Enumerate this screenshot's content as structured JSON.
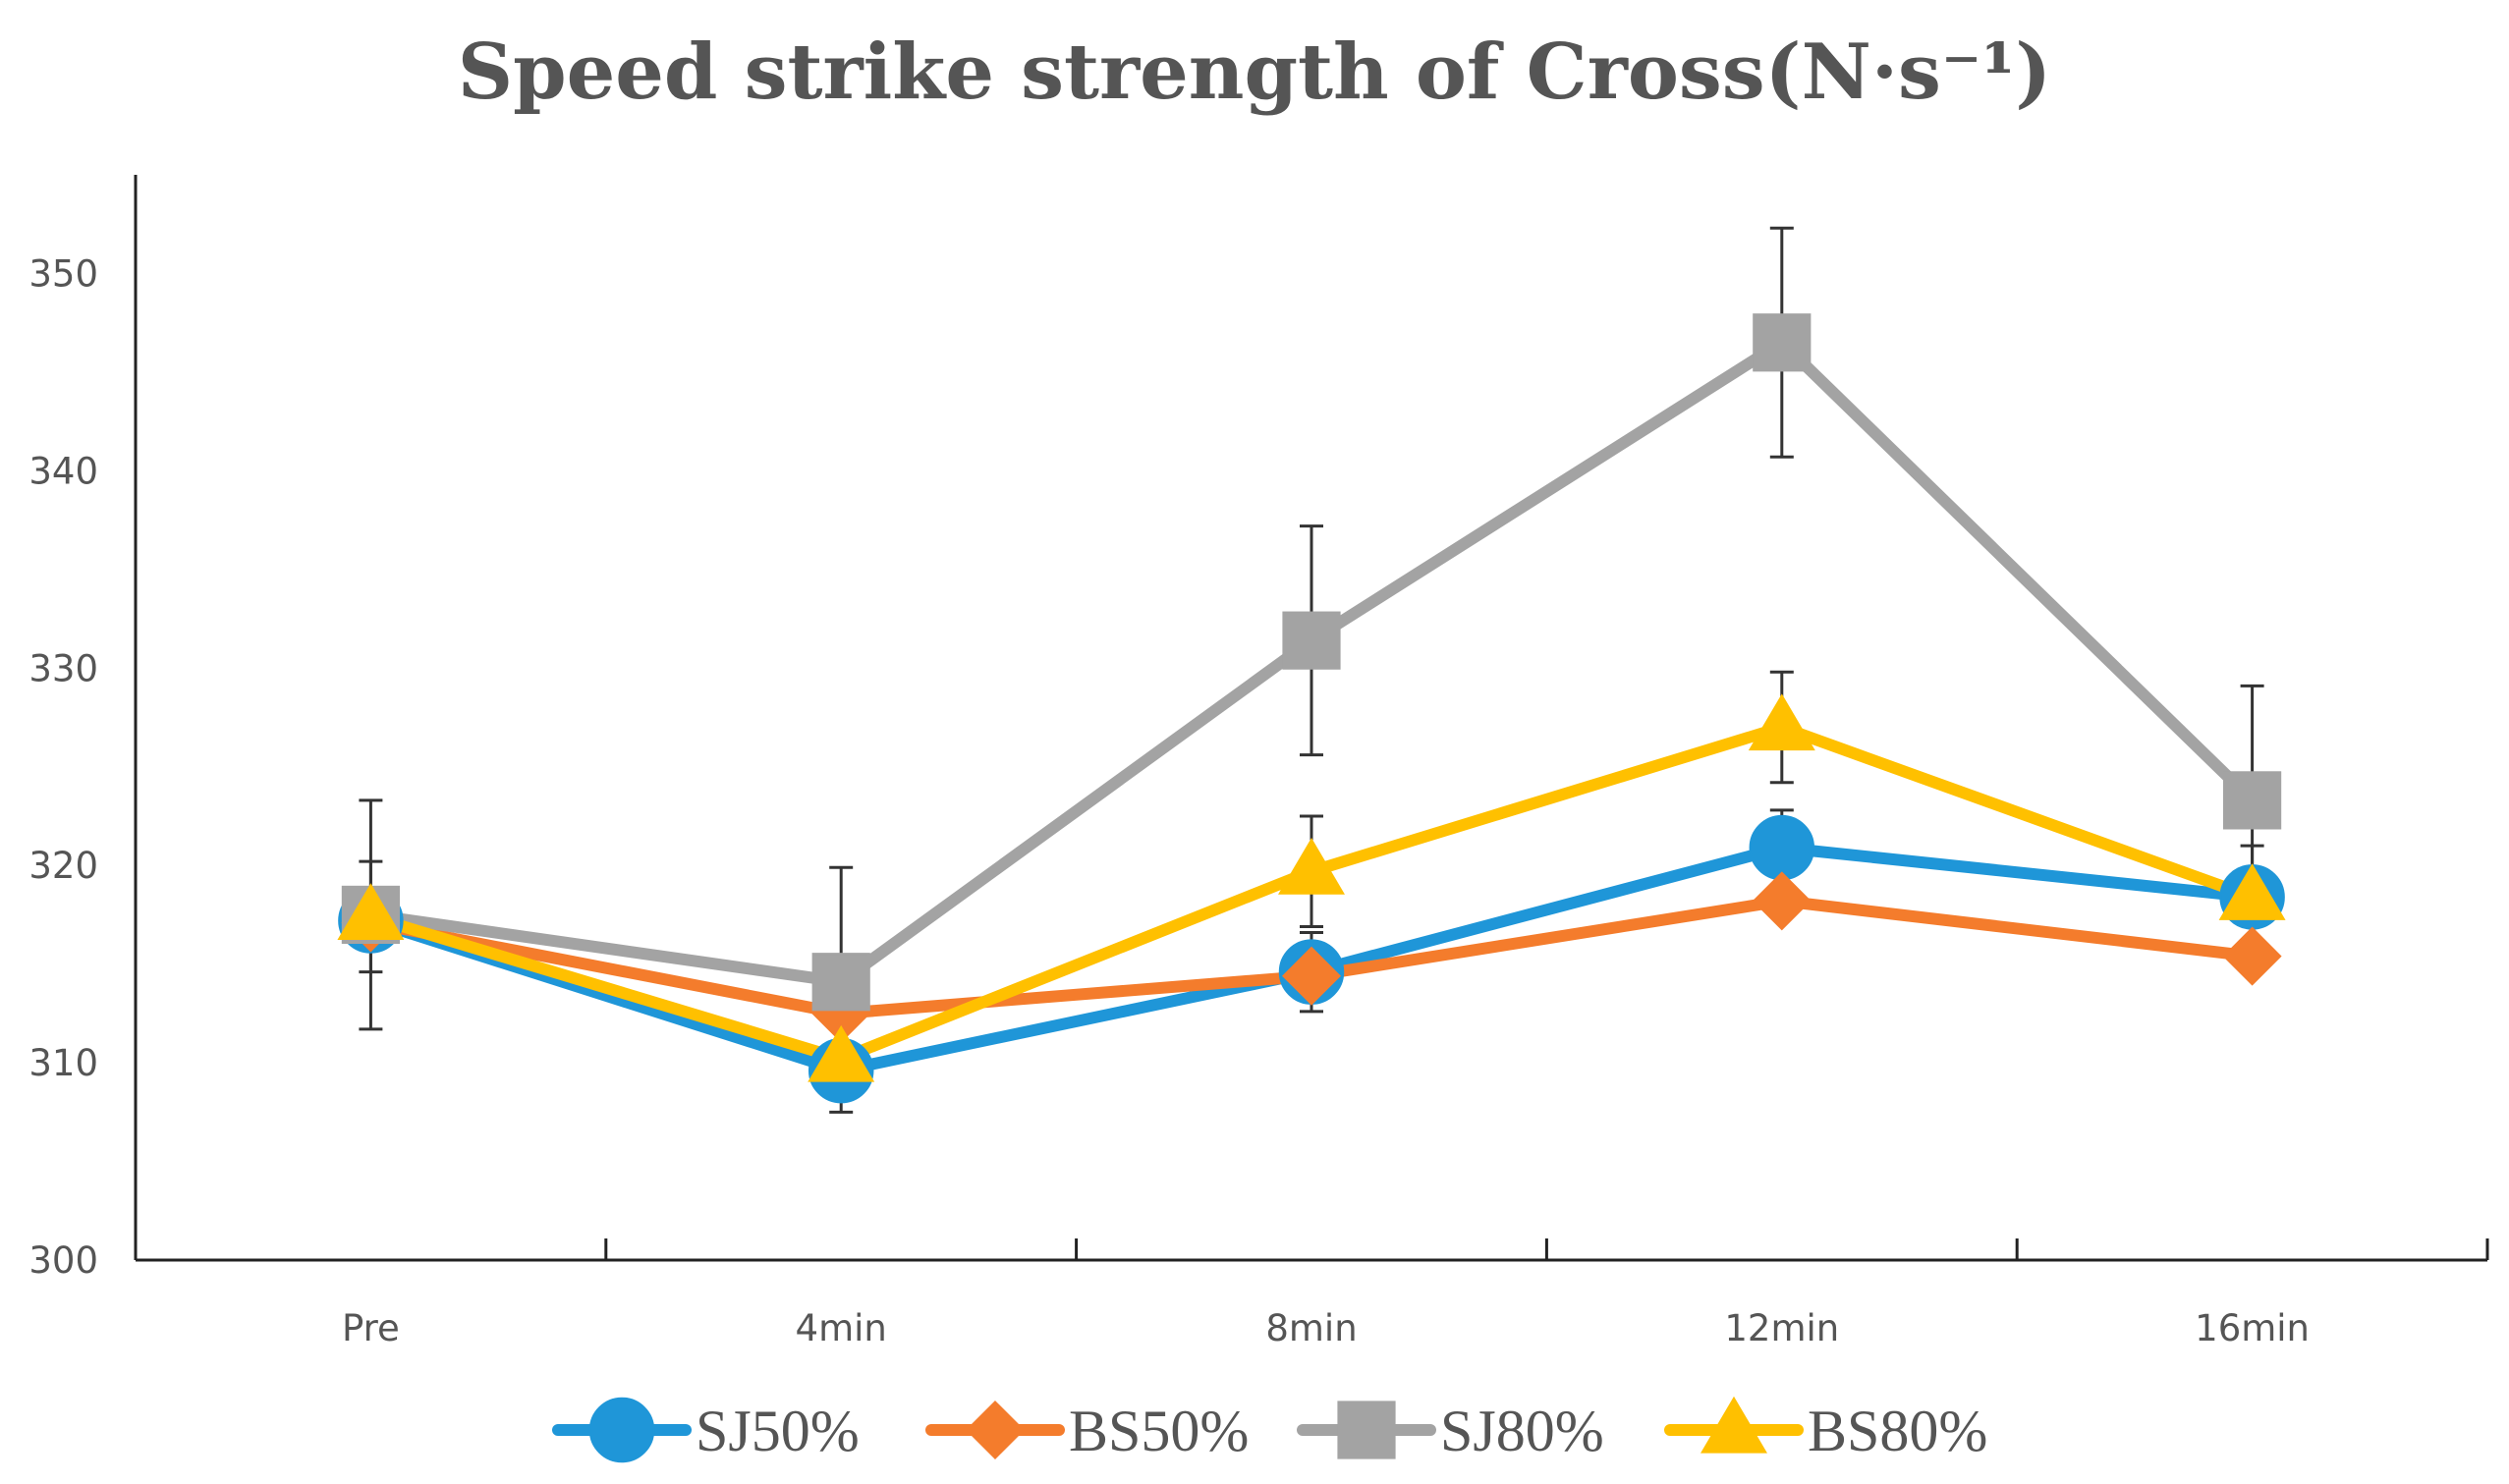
{
  "chart_data": {
    "type": "line",
    "title": "Speed strike strength of Cross(N·s⁻¹)",
    "xlabel": "",
    "ylabel": "",
    "categories": [
      "Pre",
      "4min",
      "8min",
      "12min",
      "16min"
    ],
    "ylim": [
      300,
      355
    ],
    "yticks": [
      300,
      310,
      320,
      330,
      340,
      350
    ],
    "grid": false,
    "legend_position": "bottom",
    "series": [
      {
        "name": "SJ50%",
        "color": "#1f96d8",
        "marker": "circle",
        "values": [
          317.2,
          309.6,
          314.6,
          320.9,
          318.4
        ],
        "errors": [
          null,
          2.1,
          2.0,
          1.9,
          2.6
        ]
      },
      {
        "name": "BS50%",
        "color": "#f47c2c",
        "marker": "diamond",
        "values": [
          317.1,
          312.5,
          314.4,
          318.2,
          315.4
        ],
        "errors": [
          null,
          null,
          null,
          null,
          null
        ]
      },
      {
        "name": "SJ80%",
        "color": "#a3a3a3",
        "marker": "square",
        "values": [
          317.5,
          314.1,
          331.4,
          346.5,
          323.3
        ],
        "errors": [
          5.8,
          5.8,
          5.8,
          5.8,
          5.8
        ]
      },
      {
        "name": "BS80%",
        "color": "#ffc000",
        "marker": "triangle",
        "values": [
          317.4,
          310.2,
          319.7,
          327.0,
          318.4
        ],
        "errors": [
          2.8,
          null,
          2.8,
          2.8,
          null
        ]
      }
    ]
  }
}
